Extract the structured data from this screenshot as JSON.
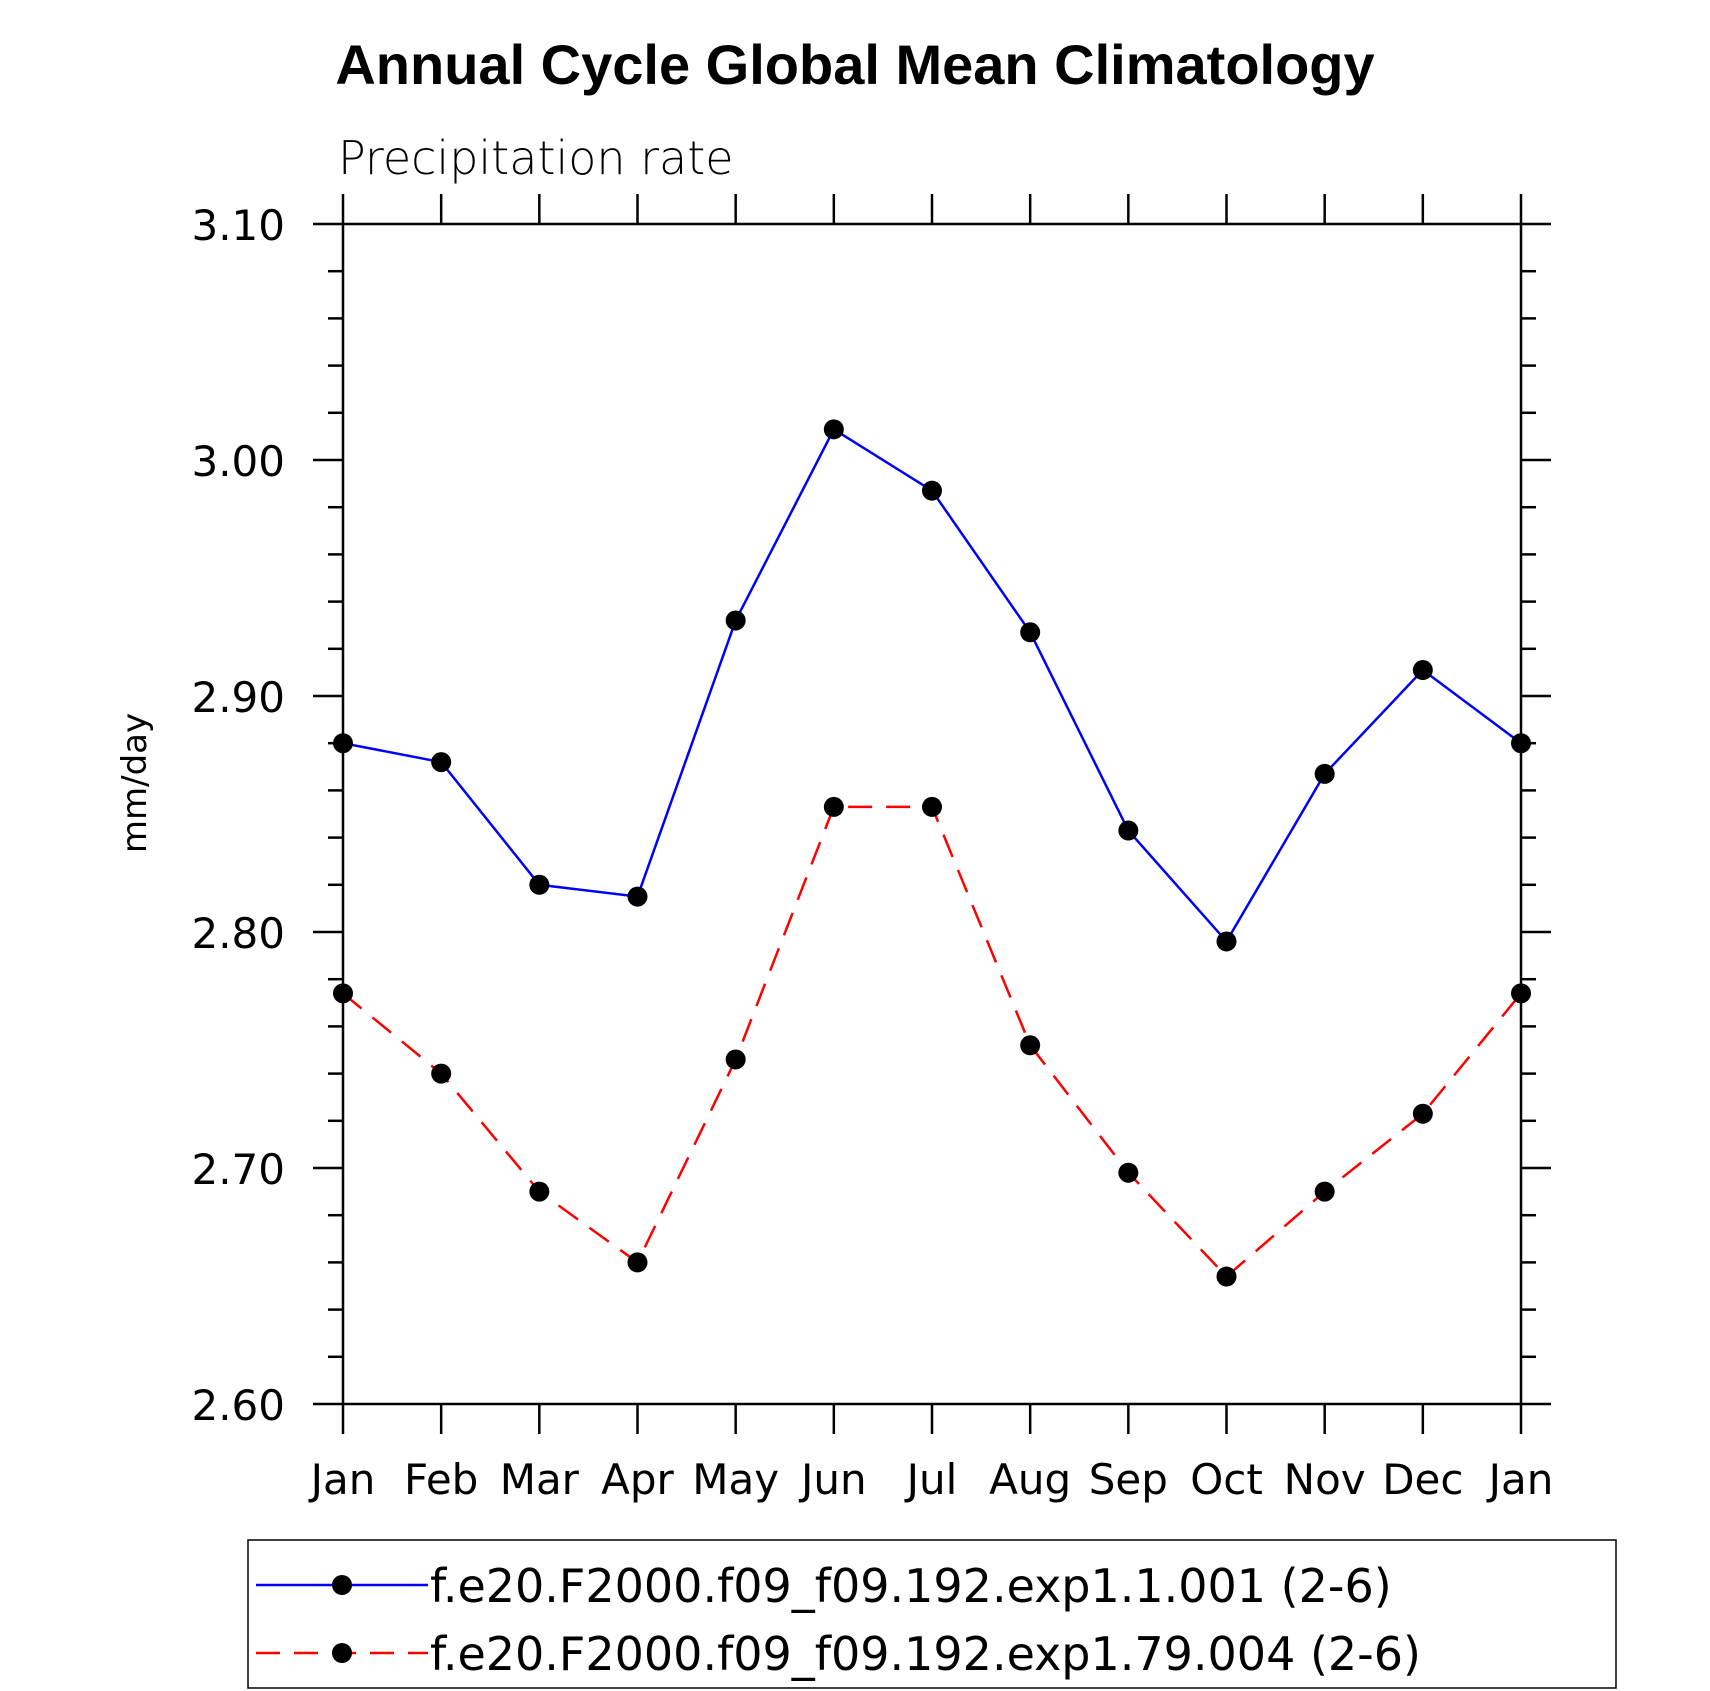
{
  "chart_data": {
    "type": "line",
    "title": "Annual Cycle Global Mean Climatology",
    "subtitle": "Precipitation rate",
    "ylabel": "mm/day",
    "xlabel": "",
    "categories": [
      "Jan",
      "Feb",
      "Mar",
      "Apr",
      "May",
      "Jun",
      "Jul",
      "Aug",
      "Sep",
      "Oct",
      "Nov",
      "Dec",
      "Jan"
    ],
    "ylim": [
      2.6,
      3.1
    ],
    "yticks": [
      "2.60",
      "2.70",
      "2.80",
      "2.90",
      "3.00",
      "3.10"
    ],
    "grid": false,
    "legend_position": "bottom",
    "series": [
      {
        "name": "f.e20.F2000.f09_f09.192.exp1.1.001 (2-6)",
        "color": "#0000ff",
        "dash": "solid",
        "values": [
          2.88,
          2.872,
          2.82,
          2.815,
          2.932,
          3.013,
          2.987,
          2.927,
          2.843,
          2.796,
          2.867,
          2.911,
          2.88
        ]
      },
      {
        "name": "f.e20.F2000.f09_f09.192.exp1.79.004 (2-6)",
        "color": "#ff0000",
        "dash": "dashed",
        "values": [
          2.774,
          2.74,
          2.69,
          2.66,
          2.746,
          2.853,
          2.853,
          2.752,
          2.698,
          2.654,
          2.69,
          2.723,
          2.774
        ]
      }
    ]
  }
}
